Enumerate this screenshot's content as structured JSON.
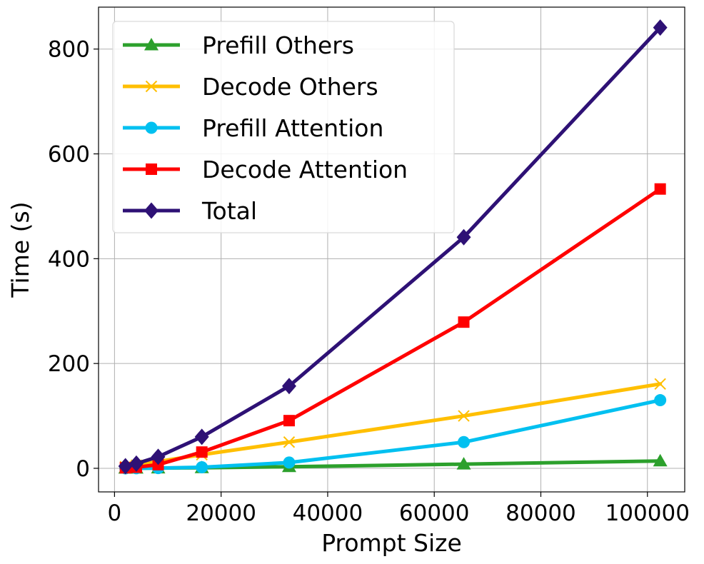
{
  "chart_data": {
    "type": "line",
    "title": "",
    "xlabel": "Prompt Size",
    "ylabel": "Time (s)",
    "xlim": [
      -3000,
      107000
    ],
    "ylim": [
      -45,
      880
    ],
    "grid": true,
    "legend_position": "top-left",
    "x_ticks": [
      0,
      20000,
      40000,
      60000,
      80000,
      100000
    ],
    "y_ticks": [
      0,
      200,
      400,
      600,
      800
    ],
    "x": [
      2048,
      4096,
      8192,
      16384,
      32768,
      65536,
      102400
    ],
    "series": [
      {
        "name": "Prefill Others",
        "color": "#2ca02c",
        "marker": "triangle",
        "values": [
          0.1,
          0.2,
          0.5,
          1,
          3,
          8,
          14
        ]
      },
      {
        "name": "Decode Others",
        "color": "#ffbf00",
        "marker": "x",
        "values": [
          3,
          6,
          13,
          26,
          50,
          100,
          161
        ]
      },
      {
        "name": "Prefill Attention",
        "color": "#00c0f0",
        "marker": "circle",
        "values": [
          0,
          0.1,
          0.4,
          2,
          11,
          50,
          130
        ]
      },
      {
        "name": "Decode Attention",
        "color": "#ff0000",
        "marker": "square",
        "values": [
          1,
          2,
          7,
          31,
          91,
          279,
          533
        ]
      },
      {
        "name": "Total",
        "color": "#2e1175",
        "marker": "diamond",
        "values": [
          4,
          9,
          22,
          60,
          157,
          441,
          841
        ]
      }
    ]
  }
}
